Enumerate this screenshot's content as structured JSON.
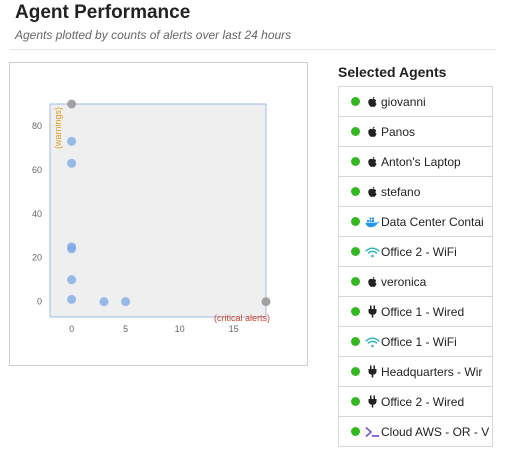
{
  "header": {
    "title": "Agent Performance",
    "subtitle": "Agents plotted by counts of alerts over last 24 hours"
  },
  "colors": {
    "status_online": "#34b822",
    "point_selected": "#7aa7e6",
    "point_unselected": "#999999",
    "plot_background": "#efefef",
    "plot_border": "#9fbde6",
    "warnings_label": "#e39a18",
    "critical_label": "#d2402b"
  },
  "chart_data": {
    "type": "scatter",
    "x_ticks": [
      "0",
      "5",
      "10",
      "15"
    ],
    "y_ticks": [
      "0",
      "20",
      "40",
      "60",
      "80"
    ],
    "xlim": [
      -2,
      18
    ],
    "ylim": [
      -7,
      90
    ],
    "annotation_x": "(critical alerts)",
    "annotation_y": "(warnings)",
    "points": [
      {
        "x": 0,
        "y": 90,
        "selected": false
      },
      {
        "x": 18,
        "y": 0,
        "selected": false
      },
      {
        "x": 0,
        "y": 73,
        "selected": true
      },
      {
        "x": 0,
        "y": 63,
        "selected": true
      },
      {
        "x": 0,
        "y": 25,
        "selected": true
      },
      {
        "x": 0,
        "y": 24,
        "selected": true
      },
      {
        "x": 0,
        "y": 10,
        "selected": true
      },
      {
        "x": 0,
        "y": 1,
        "selected": true
      },
      {
        "x": 3,
        "y": 0,
        "selected": true
      },
      {
        "x": 5,
        "y": 0,
        "selected": true
      }
    ]
  },
  "panel": {
    "title": "Selected Agents",
    "agents": [
      {
        "label": "giovanni",
        "icon": "apple-icon"
      },
      {
        "label": "Panos",
        "icon": "apple-icon"
      },
      {
        "label": "Anton's Laptop",
        "icon": "apple-icon"
      },
      {
        "label": "stefano",
        "icon": "apple-icon"
      },
      {
        "label": "Data Center Contai",
        "icon": "docker-icon"
      },
      {
        "label": "Office 2 - WiFi",
        "icon": "wifi-icon"
      },
      {
        "label": "veronica",
        "icon": "apple-icon"
      },
      {
        "label": "Office 1 - Wired",
        "icon": "plug-icon"
      },
      {
        "label": "Office 1 - WiFi",
        "icon": "wifi-icon"
      },
      {
        "label": "Headquarters - Wir",
        "icon": "plug-icon"
      },
      {
        "label": "Office 2 - Wired",
        "icon": "plug-icon"
      },
      {
        "label": "Cloud AWS - OR - V",
        "icon": "terminal-icon"
      }
    ]
  }
}
